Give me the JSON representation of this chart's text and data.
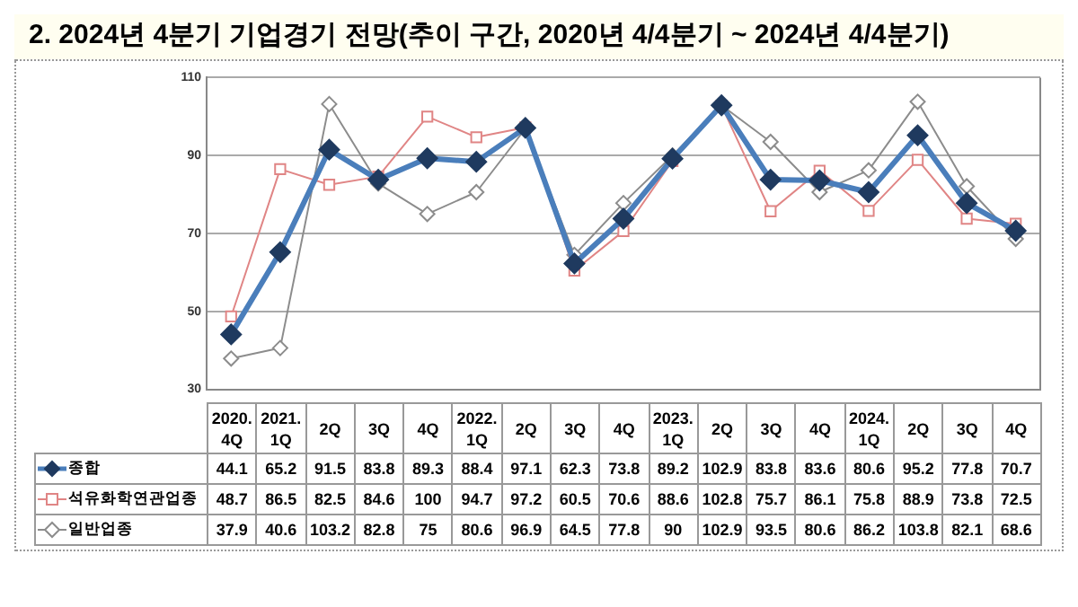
{
  "chart_data": {
    "type": "line",
    "title": "2. 2024년 4분기 기업경기 전망(추이 구간, 2020년 4/4분기 ~ 2024년 4/4분기)",
    "categories": [
      "2020.\n4Q",
      "2021.\n1Q",
      "2Q",
      "3Q",
      "4Q",
      "2022.\n1Q",
      "2Q",
      "3Q",
      "4Q",
      "2023.\n1Q",
      "2Q",
      "3Q",
      "4Q",
      "2024.\n1Q",
      "2Q",
      "3Q",
      "4Q"
    ],
    "series": [
      {
        "name": "종합",
        "color": "#4a7ebb",
        "marker": "diamond",
        "values": [
          44.1,
          65.2,
          91.5,
          83.8,
          89.3,
          88.4,
          97.1,
          62.3,
          73.8,
          89.2,
          102.9,
          83.8,
          83.6,
          80.6,
          95.2,
          77.8,
          70.7
        ]
      },
      {
        "name": "석유화학연관업종",
        "color": "#e08585",
        "marker": "square",
        "values": [
          48.7,
          86.5,
          82.5,
          84.6,
          100,
          94.7,
          97.2,
          60.5,
          70.6,
          88.6,
          102.8,
          75.7,
          86.1,
          75.8,
          88.9,
          73.8,
          72.5
        ]
      },
      {
        "name": "일반업종",
        "color": "#8c8c8c",
        "marker": "diamond",
        "values": [
          37.9,
          40.6,
          103.2,
          82.8,
          75,
          80.6,
          96.9,
          64.5,
          77.8,
          90,
          102.9,
          93.5,
          80.6,
          86.2,
          103.8,
          82.1,
          68.6
        ]
      }
    ],
    "ylim": [
      30,
      110
    ],
    "yticks": [
      30,
      50,
      70,
      90,
      110
    ],
    "grid": "y",
    "legend": "left",
    "data_labels": true
  }
}
